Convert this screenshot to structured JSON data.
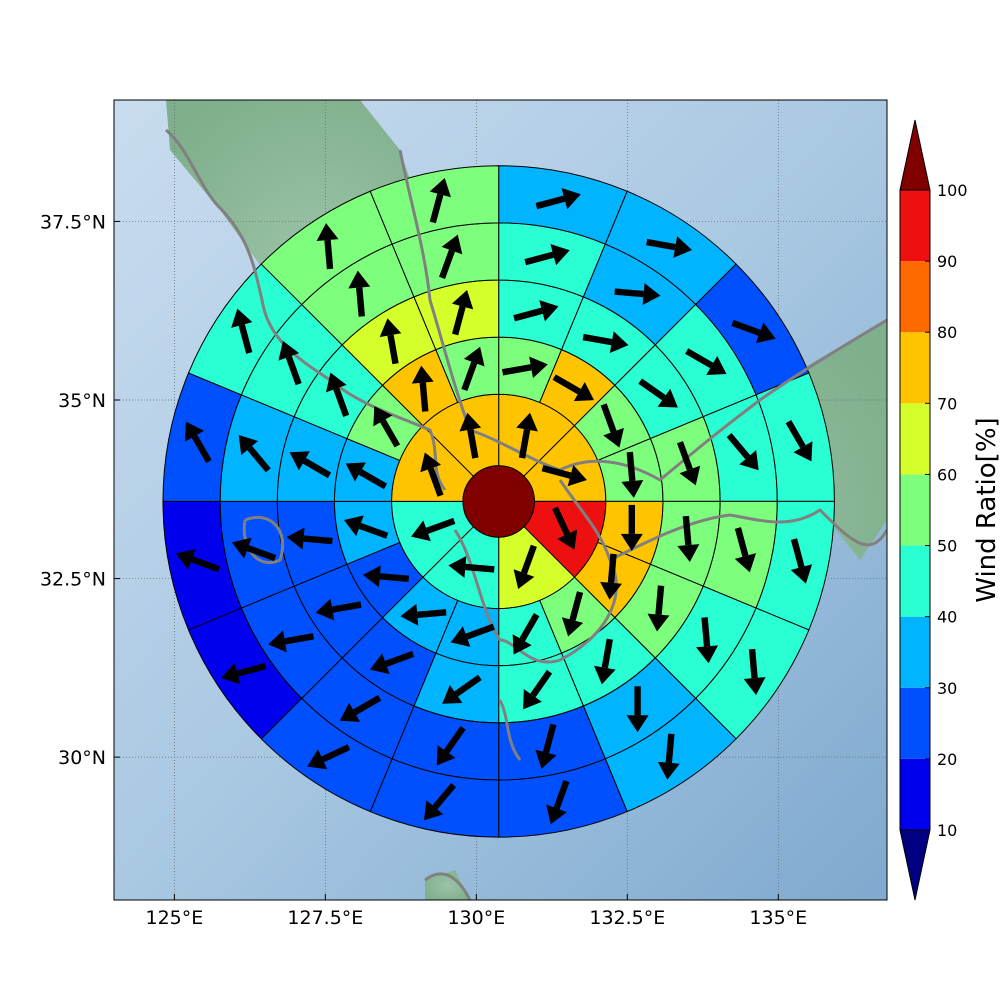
{
  "chart_data": {
    "type": "heatmap",
    "subtype": "polar-sector-map-with-wind-vectors",
    "map": {
      "lon_range": [
        124,
        136.8
      ],
      "lat_range": [
        28,
        39.2
      ],
      "x_ticks": [
        {
          "value": 125,
          "label": "125°E"
        },
        {
          "value": 127.5,
          "label": "127.5°E"
        },
        {
          "value": 130,
          "label": "130°E"
        },
        {
          "value": 132.5,
          "label": "132.5°E"
        },
        {
          "value": 135,
          "label": "135°E"
        }
      ],
      "y_ticks": [
        {
          "value": 30,
          "label": "30°N"
        },
        {
          "value": 32.5,
          "label": "32.5°N"
        },
        {
          "value": 35,
          "label": "35°N"
        },
        {
          "value": 37.5,
          "label": "37.5°N"
        }
      ],
      "grid": true,
      "background": "shaded-relief terrain with coastlines"
    },
    "polar_grid": {
      "center": {
        "lon": 130.37,
        "lat": 33.58
      },
      "ring_radii_deg_lat": [
        0.5,
        1.5,
        2.3,
        3.1,
        3.9,
        4.7
      ],
      "sectors_per_ring": [
        1,
        8,
        16,
        16,
        16,
        16
      ],
      "sector_order": "clockwise from north"
    },
    "center_value": 100,
    "rings": [
      {
        "values": [
          70,
          70,
          90,
          60,
          40,
          40,
          70,
          70
        ],
        "arrows": [
          10,
          105,
          155,
          200,
          275,
          250,
          340,
          350
        ]
      },
      {
        "values": [
          50,
          70,
          50,
          50,
          70,
          70,
          50,
          40,
          30,
          30,
          20,
          30,
          30,
          50,
          70,
          50
        ],
        "arrows": [
          80,
          120,
          160,
          175,
          180,
          185,
          195,
          210,
          250,
          265,
          275,
          290,
          300,
          330,
          355,
          20
        ]
      },
      {
        "values": [
          40,
          40,
          40,
          50,
          50,
          50,
          40,
          40,
          30,
          20,
          20,
          20,
          30,
          40,
          60,
          60
        ],
        "arrows": [
          75,
          100,
          125,
          160,
          175,
          185,
          190,
          215,
          235,
          250,
          260,
          275,
          300,
          340,
          350,
          15
        ]
      },
      {
        "values": [
          40,
          30,
          40,
          40,
          50,
          40,
          30,
          20,
          20,
          20,
          20,
          20,
          30,
          40,
          50,
          50
        ],
        "arrows": [
          75,
          95,
          120,
          140,
          165,
          175,
          180,
          195,
          215,
          240,
          260,
          290,
          320,
          340,
          355,
          20
        ]
      },
      {
        "values": [
          30,
          30,
          20,
          40,
          40,
          40,
          30,
          20,
          20,
          20,
          10,
          10,
          20,
          40,
          50,
          50
        ],
        "arrows": [
          75,
          100,
          110,
          150,
          165,
          175,
          185,
          200,
          220,
          245,
          255,
          290,
          330,
          345,
          355,
          15
        ]
      }
    ],
    "colorbar": {
      "label": "Wind Ratio[%]",
      "ticks": [
        10,
        20,
        30,
        40,
        50,
        60,
        70,
        80,
        90,
        100
      ],
      "bins": [
        {
          "min": 0,
          "max": 10,
          "color": "#000080"
        },
        {
          "min": 10,
          "max": 20,
          "color": "#0000ee"
        },
        {
          "min": 20,
          "max": 30,
          "color": "#0050ff"
        },
        {
          "min": 30,
          "max": 40,
          "color": "#00b4ff"
        },
        {
          "min": 40,
          "max": 50,
          "color": "#2affd4"
        },
        {
          "min": 50,
          "max": 60,
          "color": "#7dff7d"
        },
        {
          "min": 60,
          "max": 70,
          "color": "#d4ff2a"
        },
        {
          "min": 70,
          "max": 80,
          "color": "#ffc400"
        },
        {
          "min": 80,
          "max": 90,
          "color": "#ff6a00"
        },
        {
          "min": 90,
          "max": 100,
          "color": "#ee1010"
        },
        {
          "min": 100,
          "max": 999,
          "color": "#800000"
        }
      ],
      "extend": "both"
    }
  }
}
